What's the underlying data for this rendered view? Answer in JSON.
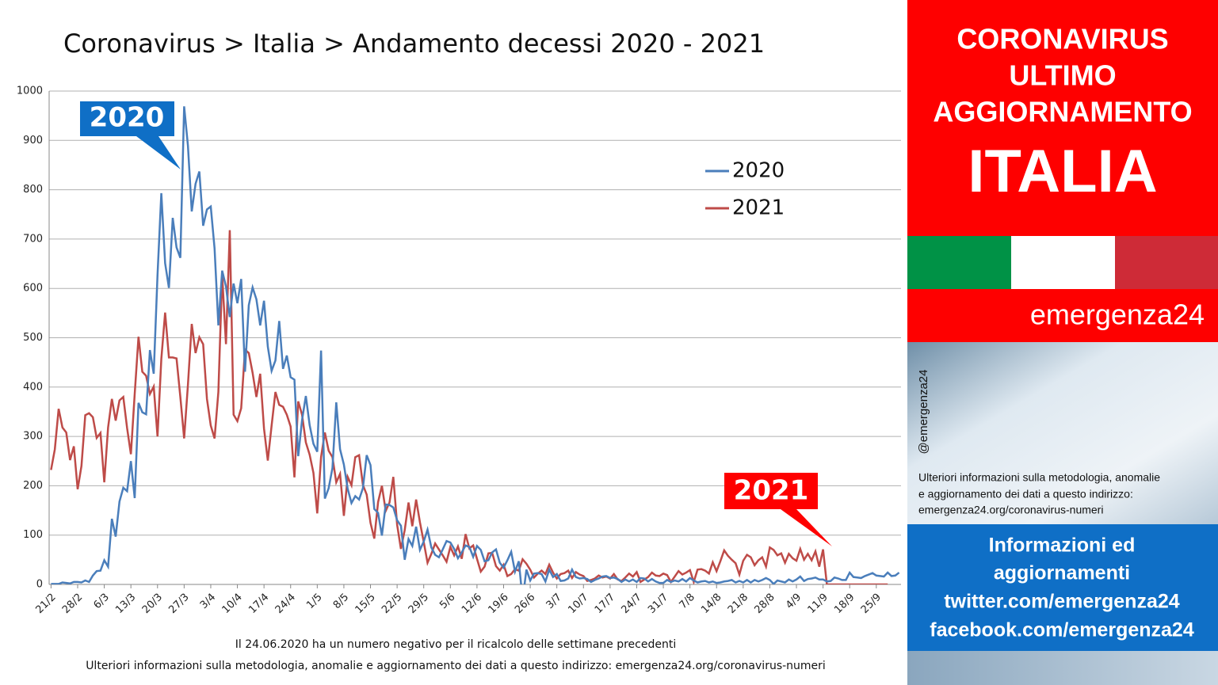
{
  "chart_data": {
    "type": "line",
    "title": "Coronavirus > Italia > Andamento decessi 2020 - 2021",
    "categories": [
      "21/2",
      null,
      null,
      null,
      null,
      null,
      null,
      "28/2",
      null,
      null,
      null,
      null,
      null,
      null,
      "6/3",
      null,
      null,
      null,
      null,
      null,
      null,
      "13/3",
      null,
      null,
      null,
      null,
      null,
      null,
      "20/3",
      null,
      null,
      null,
      null,
      null,
      null,
      "27/3",
      null,
      null,
      null,
      null,
      null,
      null,
      "3/4",
      null,
      null,
      null,
      null,
      null,
      null,
      "10/4",
      null,
      null,
      null,
      null,
      null,
      null,
      "17/4",
      null,
      null,
      null,
      null,
      null,
      null,
      "24/4",
      null,
      null,
      null,
      null,
      null,
      null,
      "1/5",
      null,
      null,
      null,
      null,
      null,
      null,
      "8/5",
      null,
      null,
      null,
      null,
      null,
      null,
      "15/5",
      null,
      null,
      null,
      null,
      null,
      null,
      "22/5",
      null,
      null,
      null,
      null,
      null,
      null,
      "29/5",
      null,
      null,
      null,
      null,
      null,
      null,
      "5/6",
      null,
      null,
      null,
      null,
      null,
      null,
      "12/6",
      null,
      null,
      null,
      null,
      null,
      null,
      "19/6",
      null,
      null,
      null,
      null,
      null,
      null,
      "26/6",
      null,
      null,
      null,
      null,
      null,
      null,
      "3/7",
      null,
      null,
      null,
      null,
      null,
      null,
      "10/7",
      null,
      null,
      null,
      null,
      null,
      null,
      "17/7",
      null,
      null,
      null,
      null,
      null,
      null,
      "24/7",
      null,
      null,
      null,
      null,
      null,
      null,
      "31/7",
      null,
      null,
      null,
      null,
      null,
      null,
      "7/8",
      null,
      null,
      null,
      null,
      null,
      null,
      "14/8",
      null,
      null,
      null,
      null,
      null,
      null,
      "21/8",
      null,
      null,
      null,
      null,
      null,
      null,
      "28/8",
      null,
      null,
      null,
      null,
      null,
      null,
      "4/9",
      null,
      null,
      null,
      null,
      null,
      null,
      "11/9",
      null,
      null,
      null,
      null,
      null,
      null,
      "18/9",
      null,
      null,
      null,
      null,
      null,
      null,
      "25/9",
      null,
      null,
      null,
      null,
      null,
      null
    ],
    "series": [
      {
        "name": "2020",
        "color": "#4a7ebb",
        "values": [
          1,
          1,
          1,
          4,
          3,
          2,
          5,
          5,
          4,
          8,
          5,
          18,
          27,
          28,
          49,
          36,
          133,
          97,
          168,
          196,
          189,
          250,
          175,
          368,
          349,
          345,
          475,
          427,
          627,
          793,
          651,
          601,
          743,
          683,
          662,
          969,
          889,
          756,
          812,
          837,
          727,
          760,
          766,
          681,
          525,
          636,
          604,
          542,
          610,
          570,
          619,
          431,
          566,
          602,
          578,
          525,
          575,
          482,
          433,
          454,
          534,
          437,
          464,
          420,
          415,
          260,
          333,
          382,
          323,
          285,
          269,
          474,
          174,
          195,
          236,
          369,
          274,
          243,
          194,
          165,
          179,
          172,
          195,
          262,
          242,
          153,
          145,
          99,
          162,
          161,
          156,
          130,
          119,
          50,
          92,
          78,
          117,
          70,
          87,
          111,
          75,
          60,
          55,
          71,
          88,
          85,
          72,
          53,
          65,
          79,
          76,
          56,
          78,
          70,
          47,
          49,
          65,
          71,
          44,
          34,
          49,
          66,
          26,
          47,
          -31,
          30,
          8,
          22,
          23,
          21,
          6,
          30,
          15,
          21,
          7,
          8,
          12,
          30,
          15,
          12,
          13,
          11,
          5,
          9,
          12,
          16,
          17,
          13,
          14,
          11,
          5,
          10,
          6,
          10,
          5,
          13,
          12,
          6,
          11,
          6,
          3,
          3,
          9,
          5,
          8,
          6,
          11,
          6,
          13,
          8,
          4,
          6,
          7,
          4,
          6,
          3,
          4,
          6,
          7,
          9,
          4,
          7,
          4,
          9,
          4,
          9,
          6,
          9,
          13,
          9,
          1,
          8,
          6,
          4,
          10,
          6,
          10,
          16,
          7,
          11,
          12,
          14,
          10,
          10,
          6,
          7,
          14,
          12,
          9,
          9,
          24,
          15,
          14,
          13,
          17,
          20,
          23,
          18,
          17,
          16,
          24,
          17,
          18,
          24
        ]
      },
      {
        "name": "2021",
        "color": "#be4b48",
        "values": [
          232,
          274,
          356,
          318,
          308,
          252,
          280,
          193,
          240,
          343,
          347,
          339,
          297,
          307,
          207,
          318,
          376,
          332,
          373,
          380,
          317,
          264,
          386,
          502,
          431,
          423,
          386,
          401,
          300,
          457,
          551,
          460,
          460,
          458,
          380,
          296,
          405,
          528,
          469,
          501,
          487,
          376,
          322,
          296,
          390,
          627,
          487,
          718,
          344,
          331,
          357,
          476,
          469,
          429,
          380,
          427,
          316,
          251,
          322,
          390,
          364,
          360,
          344,
          320,
          217,
          371,
          344,
          288,
          263,
          226,
          144,
          258,
          308,
          271,
          258,
          207,
          224,
          139,
          218,
          201,
          258,
          262,
          202,
          182,
          125,
          93,
          167,
          200,
          149,
          166,
          218,
          121,
          72,
          110,
          166,
          118,
          172,
          126,
          86,
          44,
          62,
          83,
          71,
          59,
          46,
          76,
          59,
          77,
          52,
          102,
          73,
          79,
          52,
          26,
          36,
          63,
          64,
          37,
          28,
          40,
          17,
          21,
          31,
          28,
          51,
          42,
          30,
          14,
          22,
          28,
          21,
          40,
          24,
          12,
          21,
          23,
          28,
          13,
          25,
          20,
          17,
          7,
          9,
          12,
          18,
          14,
          16,
          12,
          21,
          10,
          7,
          14,
          22,
          16,
          25,
          5,
          10,
          15,
          24,
          18,
          17,
          22,
          19,
          5,
          16,
          27,
          20,
          24,
          29,
          5,
          30,
          31,
          28,
          22,
          45,
          27,
          47,
          69,
          58,
          50,
          43,
          20,
          48,
          60,
          55,
          39,
          49,
          55,
          36,
          75,
          70,
          59,
          63,
          44,
          62,
          53,
          48,
          72,
          50,
          62,
          49,
          67,
          36,
          71,
          0,
          0,
          0,
          0,
          0,
          0,
          0,
          0,
          0,
          0,
          0,
          0,
          0,
          0,
          0,
          0,
          0,
          null,
          null,
          null
        ]
      }
    ],
    "ylim": [
      0,
      1000
    ],
    "yticks": [
      0,
      100,
      200,
      300,
      400,
      500,
      600,
      700,
      800,
      900,
      1000
    ],
    "grid": true,
    "annotations": [
      "2020",
      "2021"
    ],
    "notes": [
      "Il 24.06.2020 ha un numero negativo per il ricalcolo delle settimane precedenti",
      "Ulteriori informazioni sulla metodologia, anomalie e aggiornamento dei dati a questo indirizzo: emergenza24.org/coronavirus-numeri"
    ]
  },
  "sidebar": {
    "headline": [
      "CORONAVIRUS",
      "ULTIMO",
      "AGGIORNAMENTO"
    ],
    "country": "ITALIA",
    "brand": "emergenza24",
    "handle": "@emergenza24",
    "info": [
      "Ulteriori informazioni sulla metodologia, anomalie",
      "e aggiornamento dei dati a questo indirizzo:",
      "emergenza24.org/coronavirus-numeri"
    ],
    "links": [
      "Informazioni ed",
      "aggiornamenti",
      "twitter.com/emergenza24",
      "facebook.com/emergenza24"
    ]
  }
}
